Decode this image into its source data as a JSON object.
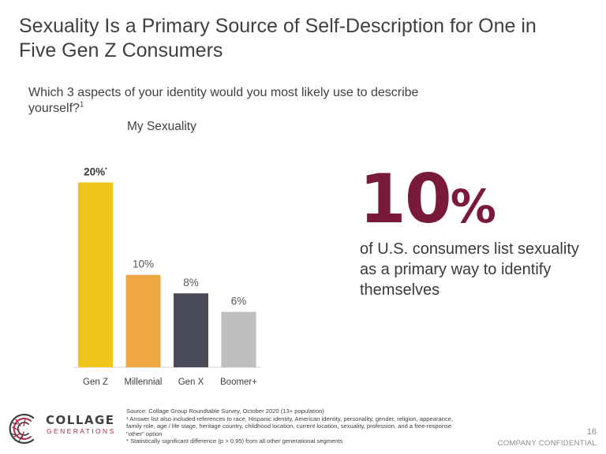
{
  "title": "Sexuality Is a Primary Source of Self-Description for One in Five Gen Z Consumers",
  "question": {
    "text": "Which 3 aspects of your identity would you most likely use to describe yourself?",
    "footnote_mark": "1"
  },
  "chart_data": {
    "type": "bar",
    "title": "My Sexuality",
    "categories": [
      "Gen Z",
      "Millennial",
      "Gen X",
      "Boomer+"
    ],
    "values": [
      20,
      10,
      8,
      6
    ],
    "data_labels": [
      "20%",
      "10%",
      "8%",
      "6%"
    ],
    "significance_marker": "*",
    "significant_category": "Gen Z",
    "colors": [
      "#f0c419",
      "#f0a842",
      "#4a4d59",
      "#bfbdbd"
    ],
    "ylim": [
      0,
      22
    ],
    "grid": false,
    "legend": "none"
  },
  "stat": {
    "number": "10",
    "unit": "%",
    "description": "of U.S. consumers list sexuality as a primary way to identify themselves",
    "color": "#7a1a3a"
  },
  "logo": {
    "name": "COLLAGE",
    "subtitle": "GENERATIONS",
    "accent_color": "#b02a46"
  },
  "footnotes": [
    "Source: Collage Group Roundtable Survey, October 2020 (13+ population)",
    "¹ Answer list also included references to race, Hispanic identity, American identity, personality, gender, religion, appearance, family role, age / life stage, heritage country, childhood location, current location, sexuality, profession, and a free-response \"other\" option",
    "* Statistically significant difference (p > 0.95) from all other generational segments"
  ],
  "page_number": "16",
  "confidential": "COMPANY CONFIDENTIAL"
}
